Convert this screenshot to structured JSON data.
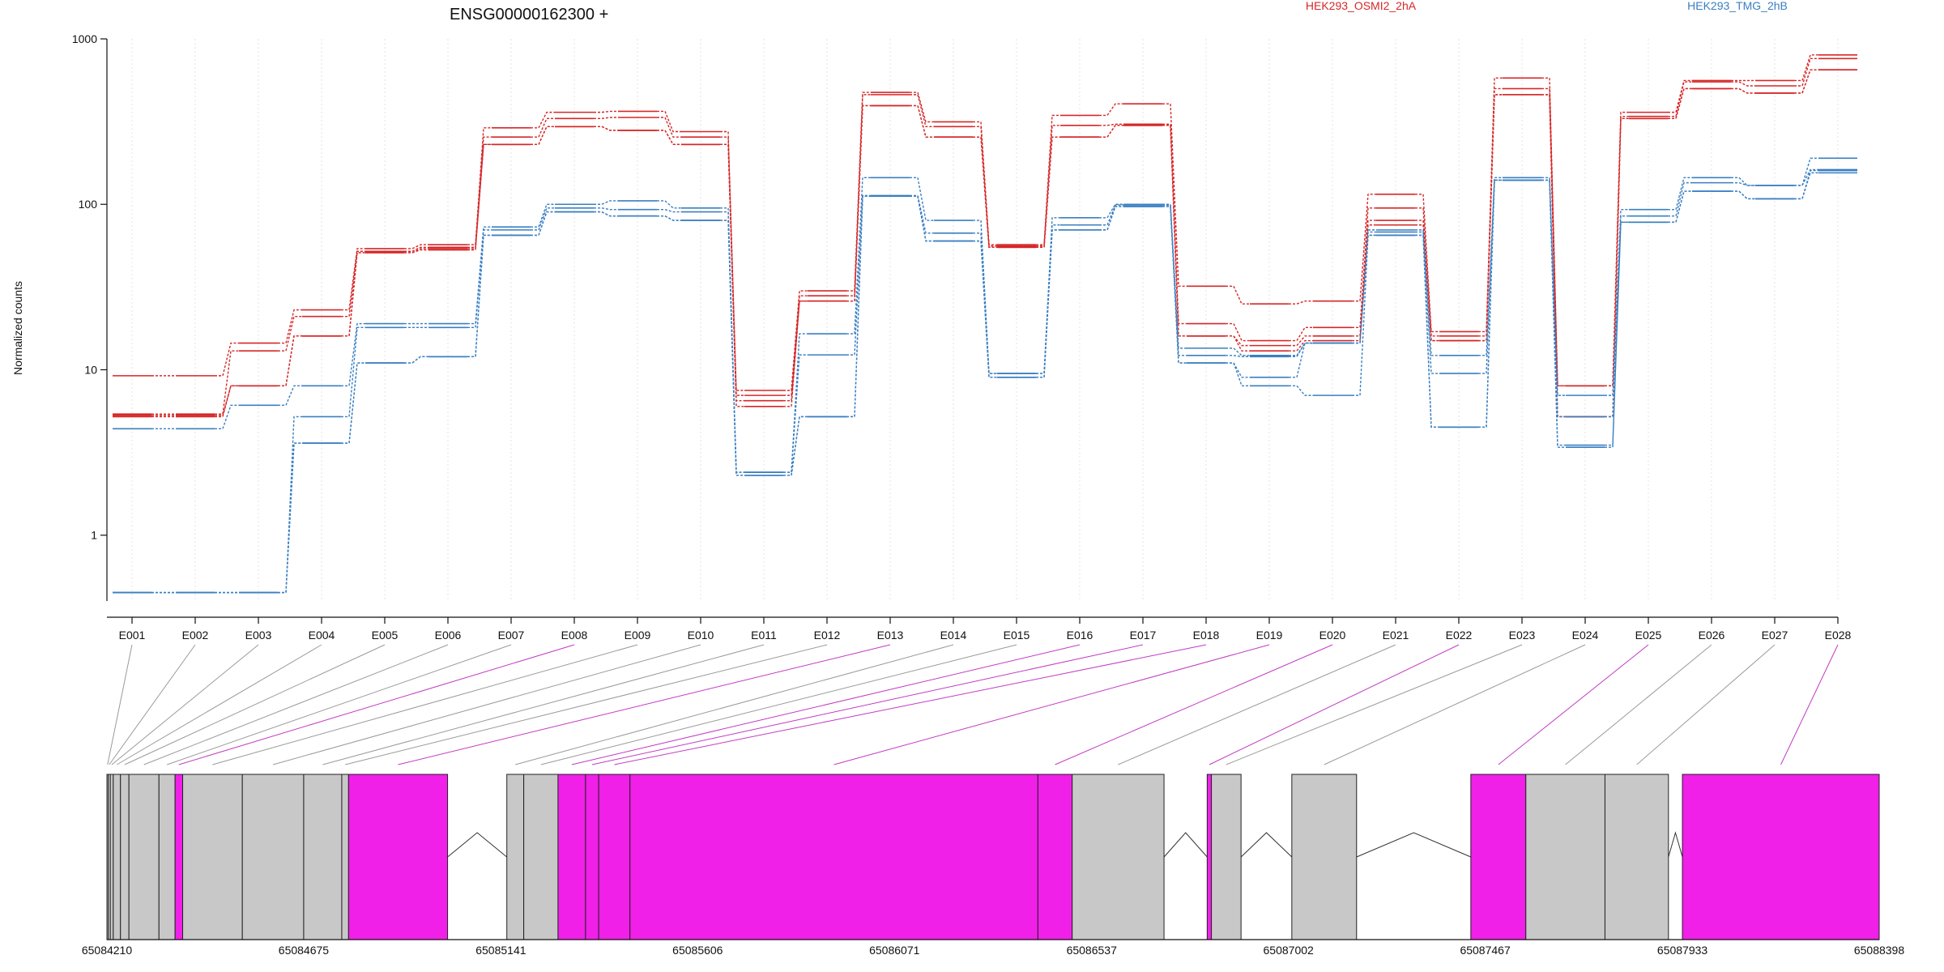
{
  "chart_data": {
    "type": "line",
    "title": "ENSG00000162300 +",
    "ylabel": "Normalized counts",
    "xlabel": "",
    "yscale": "log",
    "ylim": [
      0.4,
      1000
    ],
    "yticks": [
      1,
      10,
      100,
      1000
    ],
    "grid": "vertical dotted at exons",
    "categories": [
      "E001",
      "E002",
      "E003",
      "E004",
      "E005",
      "E006",
      "E007",
      "E008",
      "E009",
      "E010",
      "E011",
      "E012",
      "E013",
      "E014",
      "E015",
      "E016",
      "E017",
      "E018",
      "E019",
      "E020",
      "E021",
      "E022",
      "E023",
      "E024",
      "E025",
      "E026",
      "E027",
      "E028"
    ],
    "legend": [
      {
        "name": "HEK293_OSMI2_2hA",
        "color": "#d62728"
      },
      {
        "name": "HEK293_TMG_2hB",
        "color": "#3a7fc1"
      }
    ],
    "series": [
      {
        "group": "HEK293_OSMI2_2hA",
        "values": [
          9.2,
          9.2,
          14.5,
          23,
          54,
          57,
          290,
          360,
          365,
          275,
          7.5,
          30,
          475,
          315,
          57,
          345,
          405,
          32,
          25,
          26,
          115,
          17,
          580,
          8,
          360,
          560,
          560,
          800
        ]
      },
      {
        "group": "HEK293_OSMI2_2hA",
        "values": [
          5.4,
          5.4,
          13,
          21,
          52,
          55,
          255,
          330,
          335,
          255,
          7,
          28,
          460,
          295,
          56,
          300,
          305,
          19,
          15,
          18,
          95,
          16,
          500,
          8,
          340,
          550,
          520,
          760
        ]
      },
      {
        "group": "HEK293_OSMI2_2hA",
        "values": [
          5.3,
          5.3,
          8,
          16,
          51,
          54,
          230,
          295,
          280,
          230,
          6.5,
          26,
          395,
          255,
          55,
          255,
          300,
          16,
          14,
          16,
          80,
          15,
          460,
          5.2,
          330,
          500,
          470,
          650
        ]
      },
      {
        "group": "HEK293_OSMI2_2hA",
        "values": [
          5.2,
          5.2,
          8,
          16,
          51,
          53,
          230,
          295,
          280,
          230,
          6,
          26,
          395,
          255,
          55,
          255,
          300,
          16,
          13,
          15,
          75,
          15,
          460,
          5.2,
          330,
          500,
          470,
          650
        ]
      },
      {
        "group": "HEK293_TMG_2hB",
        "values": [
          4.4,
          4.4,
          6.1,
          8,
          19,
          19,
          73,
          100,
          105,
          95,
          2.4,
          16.5,
          145,
          80,
          9.5,
          83,
          100,
          13.5,
          12.2,
          14.5,
          70,
          12.2,
          145,
          7,
          93,
          145,
          130,
          190
        ]
      },
      {
        "group": "HEK293_TMG_2hB",
        "values": [
          0.45,
          0.45,
          0.45,
          5.2,
          18,
          18,
          70,
          95,
          93,
          90,
          2.4,
          12.3,
          113,
          67,
          9.5,
          75,
          99,
          12.2,
          12,
          14.5,
          68,
          9.5,
          140,
          5.2,
          85,
          135,
          130,
          162
        ]
      },
      {
        "group": "HEK293_TMG_2hB",
        "values": [
          0.45,
          0.45,
          0.45,
          3.6,
          11,
          12,
          65,
          90,
          85,
          80,
          2.3,
          5.2,
          112,
          60,
          9,
          70,
          97,
          11,
          9,
          14.5,
          65,
          4.5,
          140,
          3.5,
          78,
          120,
          108,
          160
        ]
      },
      {
        "group": "HEK293_TMG_2hB",
        "values": [
          0.45,
          0.45,
          0.45,
          3.6,
          11,
          12,
          65,
          90,
          85,
          80,
          2.3,
          5.2,
          112,
          60,
          9,
          70,
          97,
          11,
          8,
          7,
          65,
          4.5,
          140,
          3.4,
          78,
          120,
          108,
          155
        ]
      }
    ],
    "gene_model": {
      "coordinate_ticks": [
        "65084210",
        "65084675",
        "65085141",
        "65085606",
        "65086071",
        "65086537",
        "65087002",
        "65087467",
        "65087933",
        "65088398"
      ],
      "axis_range": [
        65084210,
        65088398
      ],
      "highlight_color": "#f020e8",
      "normal_color": "#c8c8c8",
      "exons": [
        {
          "id": "E001",
          "start": 65084210,
          "end": 65084213,
          "highlight": false
        },
        {
          "id": "E002",
          "start": 65084213,
          "end": 65084218,
          "highlight": false
        },
        {
          "id": "E003",
          "start": 65084218,
          "end": 65084225,
          "highlight": false
        },
        {
          "id": "E004",
          "start": 65084225,
          "end": 65084242,
          "highlight": false
        },
        {
          "id": "E005",
          "start": 65084242,
          "end": 65084262,
          "highlight": false
        },
        {
          "id": "E006",
          "start": 65084262,
          "end": 65084333,
          "highlight": false
        },
        {
          "id": "E007",
          "start": 65084333,
          "end": 65084371,
          "highlight": false
        },
        {
          "id": "E008",
          "start": 65084371,
          "end": 65084389,
          "highlight": true
        },
        {
          "id": "E009",
          "start": 65084389,
          "end": 65084530,
          "highlight": false
        },
        {
          "id": "E010",
          "start": 65084530,
          "end": 65084675,
          "highlight": false
        },
        {
          "id": "E011",
          "start": 65084675,
          "end": 65084765,
          "highlight": false
        },
        {
          "id": "E012",
          "start": 65084765,
          "end": 65084781,
          "highlight": false
        },
        {
          "id": "E013",
          "start": 65084781,
          "end": 65085015,
          "highlight": true
        },
        {
          "id": "E014",
          "start": 65085155,
          "end": 65085195,
          "highlight": false
        },
        {
          "id": "E015",
          "start": 65085195,
          "end": 65085276,
          "highlight": false
        },
        {
          "id": "E016",
          "start": 65085276,
          "end": 65085341,
          "highlight": true
        },
        {
          "id": "E017",
          "start": 65085341,
          "end": 65085372,
          "highlight": true
        },
        {
          "id": "E018",
          "start": 65085372,
          "end": 65085446,
          "highlight": true
        },
        {
          "id": "E019",
          "start": 65085446,
          "end": 65086410,
          "highlight": true
        },
        {
          "id": "E020",
          "start": 65086410,
          "end": 65086491,
          "highlight": true
        },
        {
          "id": "E021",
          "start": 65086491,
          "end": 65086708,
          "highlight": false
        },
        {
          "id": "E022",
          "start": 65086810,
          "end": 65086820,
          "highlight": true
        },
        {
          "id": "E023",
          "start": 65086820,
          "end": 65086890,
          "highlight": false
        },
        {
          "id": "E024",
          "start": 65087010,
          "end": 65087163,
          "highlight": false
        },
        {
          "id": "E025",
          "start": 65087433,
          "end": 65087563,
          "highlight": true
        },
        {
          "id": "E026",
          "start": 65087563,
          "end": 65087750,
          "highlight": false
        },
        {
          "id": "E027",
          "start": 65087750,
          "end": 65087900,
          "highlight": false
        },
        {
          "id": "E028",
          "start": 65087933,
          "end": 65088398,
          "highlight": true
        }
      ]
    }
  }
}
